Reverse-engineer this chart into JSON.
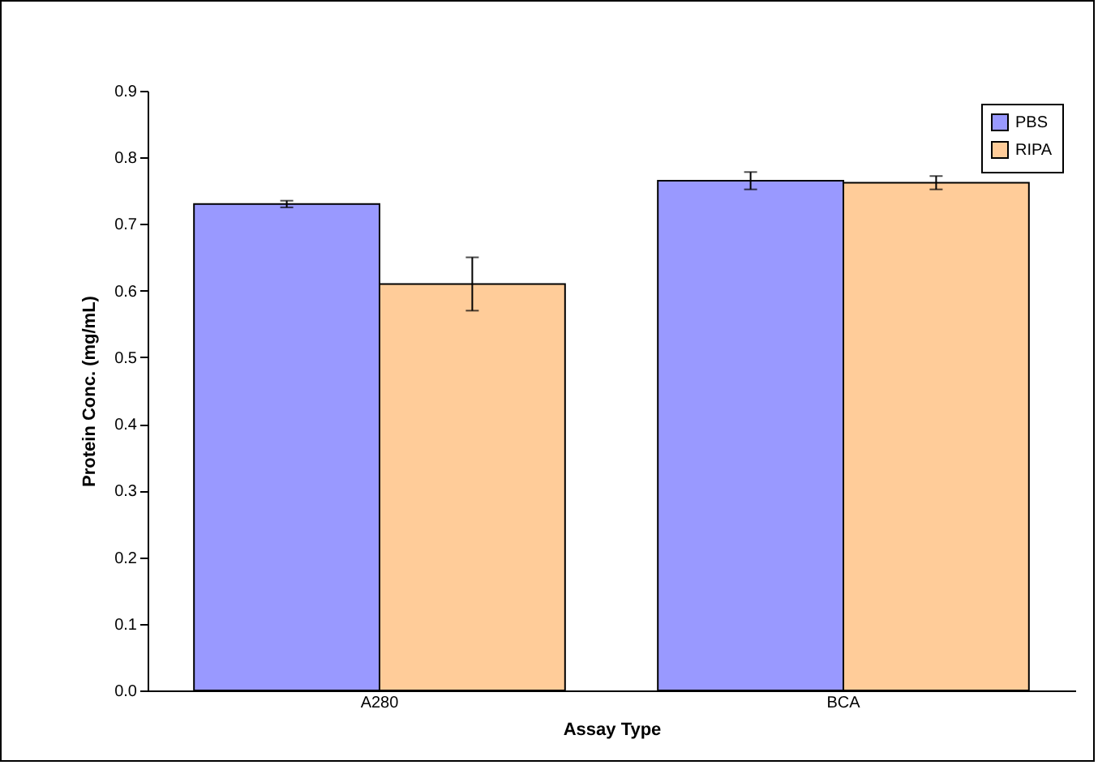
{
  "chart_data": {
    "type": "bar",
    "xlabel": "Assay Type",
    "ylabel": "Protein Conc. (mg/mL)",
    "categories": [
      "A280",
      "BCA"
    ],
    "series": [
      {
        "name": "PBS",
        "color": "#9999ff",
        "values": [
          0.73,
          0.765
        ],
        "errors": [
          0.005,
          0.013
        ]
      },
      {
        "name": "RIPA",
        "color": "#ffcc99",
        "values": [
          0.61,
          0.762
        ],
        "errors": [
          0.04,
          0.01
        ]
      }
    ],
    "ylim": [
      0,
      0.9
    ],
    "yticks": [
      {
        "value": 0,
        "label": "0.0"
      },
      0.1,
      0.2,
      0.3,
      0.4,
      0.5,
      0.6,
      0.7,
      0.8,
      0.9
    ],
    "legend": "top right",
    "grid": false
  }
}
